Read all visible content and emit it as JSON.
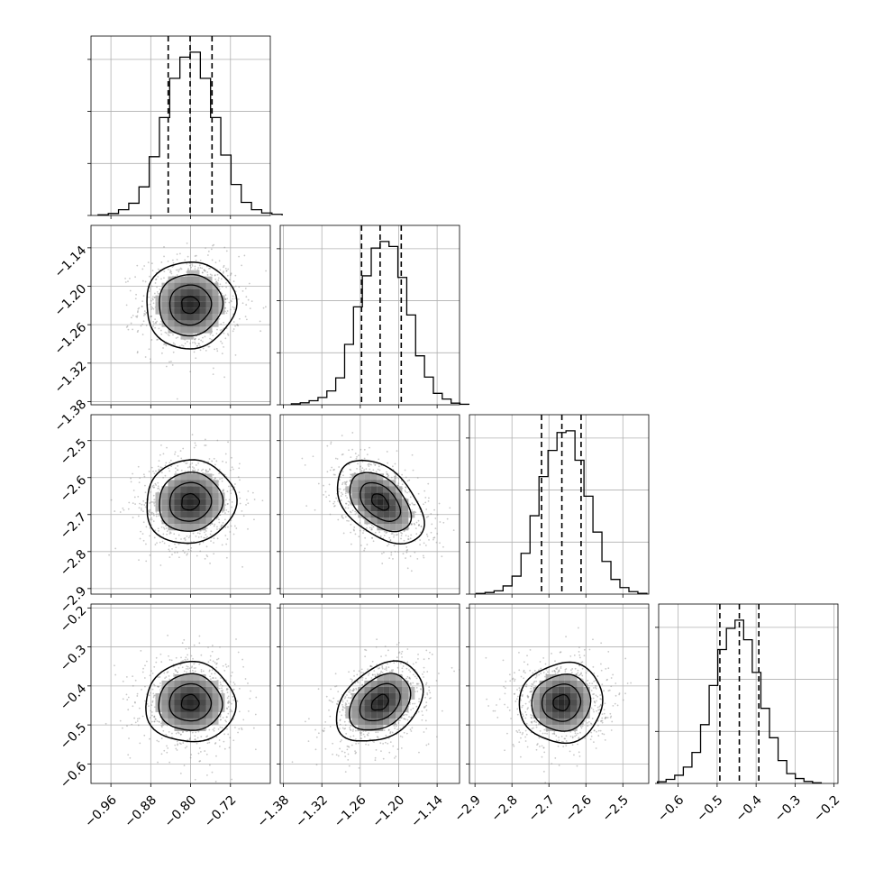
{
  "chart_data": {
    "type": "corner",
    "n_params": 4,
    "grid": true,
    "quantiles": [
      0.16,
      0.5,
      0.84
    ],
    "params": [
      {
        "range": [
          -1.0,
          -0.64
        ],
        "ticks": [
          -0.96,
          -0.88,
          -0.8,
          -0.72
        ],
        "tick_labels": [
          "−0.96",
          "−0.88",
          "−0.80",
          "−0.72"
        ],
        "quantile_values": [
          -0.845,
          -0.801,
          -0.757
        ],
        "mean": -0.801,
        "sd": 0.044,
        "hist": [
          0.004,
          0.012,
          0.035,
          0.075,
          0.175,
          0.36,
          0.6,
          0.84,
          0.97,
          1.0,
          0.84,
          0.6,
          0.37,
          0.19,
          0.08,
          0.035,
          0.015,
          0.007
        ]
      },
      {
        "range": [
          -1.385,
          -1.105
        ],
        "ticks": [
          -1.38,
          -1.32,
          -1.26,
          -1.2,
          -1.14
        ],
        "tick_labels": [
          "−1.38",
          "−1.32",
          "−1.26",
          "−1.20",
          "−1.14"
        ],
        "quantile_values": [
          -1.258,
          -1.229,
          -1.196
        ],
        "mean": -1.229,
        "sd": 0.033,
        "hist": [
          0.006,
          0.012,
          0.025,
          0.045,
          0.085,
          0.165,
          0.37,
          0.6,
          0.79,
          0.96,
          1.0,
          0.97,
          0.78,
          0.55,
          0.3,
          0.17,
          0.07,
          0.035,
          0.01,
          0.003
        ]
      },
      {
        "range": [
          -2.915,
          -2.43
        ],
        "ticks": [
          -2.9,
          -2.8,
          -2.7,
          -2.6,
          -2.5
        ],
        "tick_labels": [
          "−2.9",
          "−2.8",
          "−2.7",
          "−2.6",
          "−2.5"
        ],
        "quantile_values": [
          -2.72,
          -2.665,
          -2.613
        ],
        "mean": -2.666,
        "sd": 0.055,
        "hist": [
          0.004,
          0.01,
          0.02,
          0.05,
          0.11,
          0.25,
          0.48,
          0.72,
          0.88,
          0.99,
          1.0,
          0.82,
          0.6,
          0.38,
          0.2,
          0.09,
          0.04,
          0.015,
          0.005
        ]
      },
      {
        "range": [
          -0.65,
          -0.19
        ],
        "ticks": [
          -0.6,
          -0.5,
          -0.4,
          -0.3,
          -0.2
        ],
        "tick_labels": [
          "−0.6",
          "−0.5",
          "−0.4",
          "−0.3",
          "−0.2"
        ],
        "quantile_values": [
          -0.493,
          -0.443,
          -0.393
        ],
        "mean": -0.443,
        "sd": 0.05,
        "hist": [
          0.01,
          0.025,
          0.05,
          0.1,
          0.19,
          0.36,
          0.6,
          0.82,
          0.95,
          1.0,
          0.88,
          0.68,
          0.46,
          0.28,
          0.14,
          0.06,
          0.03,
          0.012,
          0.004
        ]
      }
    ],
    "correlations": [
      [
        1,
        0.02,
        0.05,
        0.0
      ],
      [
        0.02,
        1,
        -0.45,
        0.35
      ],
      [
        0.05,
        -0.45,
        1,
        0.05
      ],
      [
        0.0,
        0.35,
        0.05,
        1
      ]
    ]
  }
}
